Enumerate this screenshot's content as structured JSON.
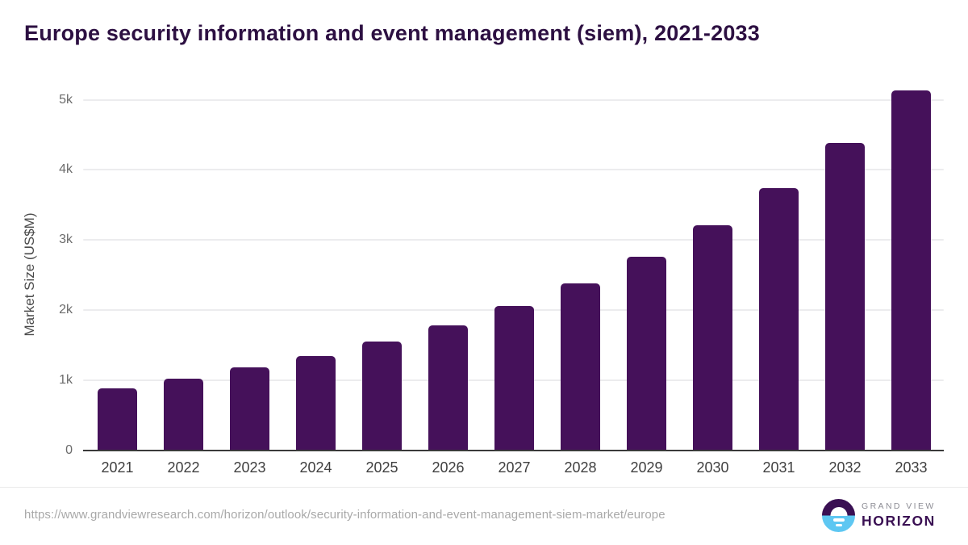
{
  "title": "Europe security information and event management (siem), 2021-2033",
  "footer": {
    "source_url": "https://www.grandviewresearch.com/horizon/outlook/security-information-and-event-management-siem-market/europe",
    "logo": {
      "icon": "horizon-sunrise-icon",
      "line1": "GRAND VIEW",
      "line2": "HORIZON"
    }
  },
  "colors": {
    "bar": "#45115A",
    "title": "#2D1042",
    "gridline": "#ECECEE",
    "axis_line": "#3A3A3A",
    "x_tick_labels": "#3F3F3F",
    "y_tick_labels": "#6B6B6B",
    "y_axis_title": "#4A4A4A",
    "source_url_text": "#A9A9A9",
    "logo_purple": "#3A1053",
    "logo_blue": "#5EC7F2",
    "logo_gray": "#8C8C94"
  },
  "chart_data": {
    "type": "bar",
    "title": "Europe security information and event management (siem), 2021-2033",
    "categories": [
      "2021",
      "2022",
      "2023",
      "2024",
      "2025",
      "2026",
      "2027",
      "2028",
      "2029",
      "2030",
      "2031",
      "2032",
      "2033"
    ],
    "values": [
      890,
      1030,
      1190,
      1350,
      1550,
      1785,
      2055,
      2380,
      2760,
      3210,
      3745,
      4380,
      5135
    ],
    "xlabel": "",
    "ylabel": "Market Size (US$M)",
    "ylim": [
      0,
      5000
    ],
    "yticks": [
      {
        "value": 0,
        "label": "0"
      },
      {
        "value": 1000,
        "label": "1k"
      },
      {
        "value": 2000,
        "label": "2k"
      },
      {
        "value": 3000,
        "label": "3k"
      },
      {
        "value": 4000,
        "label": "4k"
      },
      {
        "value": 5000,
        "label": "5k"
      }
    ],
    "grid": "horizontal",
    "legend": "none",
    "bar_color": "#45115A"
  }
}
